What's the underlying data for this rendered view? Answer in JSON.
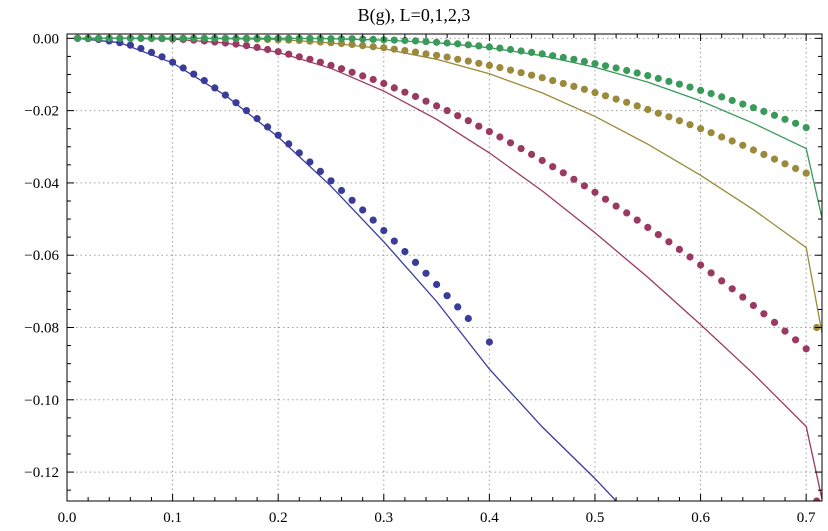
{
  "chart_data": {
    "type": "line",
    "title": "B(g), L=0,1,2,3",
    "xlabel": "",
    "ylabel": "",
    "xlim": [
      0.0,
      0.715
    ],
    "ylim": [
      -0.128,
      0.0012
    ],
    "x_ticks": [
      {
        "value": 0.0,
        "label": "0.0"
      },
      {
        "value": 0.1,
        "label": "0.1"
      },
      {
        "value": 0.2,
        "label": "0.2"
      },
      {
        "value": 0.3,
        "label": "0.3"
      },
      {
        "value": 0.4,
        "label": "0.4"
      },
      {
        "value": 0.5,
        "label": "0.5"
      },
      {
        "value": 0.6,
        "label": "0.6"
      },
      {
        "value": 0.7,
        "label": "0.7"
      }
    ],
    "y_ticks": [
      {
        "value": 0.0,
        "label": "0.00"
      },
      {
        "value": -0.02,
        "label": "−0.02"
      },
      {
        "value": -0.04,
        "label": "−0.04"
      },
      {
        "value": -0.06,
        "label": "−0.06"
      },
      {
        "value": -0.08,
        "label": "−0.08"
      },
      {
        "value": -0.1,
        "label": "−0.10"
      },
      {
        "value": -0.12,
        "label": "−0.12"
      }
    ],
    "grid": true,
    "series": [
      {
        "color": "#3a3c9a",
        "line_x": [
          0.01,
          0.05,
          0.1,
          0.15,
          0.2,
          0.25,
          0.3,
          0.35,
          0.4,
          0.45,
          0.5,
          0.52
        ],
        "line_y": [
          0.0,
          -0.0012,
          -0.0068,
          -0.0158,
          -0.0273,
          -0.0409,
          -0.0563,
          -0.0728,
          -0.0915,
          -0.1075,
          -0.1218,
          -0.128
        ],
        "points_x": [
          0.01,
          0.02,
          0.03,
          0.04,
          0.05,
          0.06,
          0.07,
          0.08,
          0.09,
          0.1,
          0.11,
          0.12,
          0.13,
          0.14,
          0.15,
          0.16,
          0.17,
          0.18,
          0.19,
          0.2,
          0.21,
          0.22,
          0.23,
          0.24,
          0.25,
          0.26,
          0.27,
          0.28,
          0.29,
          0.3,
          0.31,
          0.32,
          0.33,
          0.34,
          0.35,
          0.36,
          0.37,
          0.38,
          0.4
        ],
        "points_y": [
          0.0,
          -0.0001,
          -0.0003,
          -0.0007,
          -0.0012,
          -0.0019,
          -0.0028,
          -0.0039,
          -0.0051,
          -0.0066,
          -0.0082,
          -0.0099,
          -0.0117,
          -0.0137,
          -0.0157,
          -0.0178,
          -0.02,
          -0.0222,
          -0.0245,
          -0.0268,
          -0.0292,
          -0.0317,
          -0.0342,
          -0.0368,
          -0.0394,
          -0.0421,
          -0.0448,
          -0.0475,
          -0.0503,
          -0.0532,
          -0.0561,
          -0.059,
          -0.062,
          -0.065,
          -0.0681,
          -0.0712,
          -0.0743,
          -0.0775,
          -0.084
        ]
      },
      {
        "color": "#9a3a64",
        "line_x": [
          0.01,
          0.05,
          0.1,
          0.15,
          0.2,
          0.25,
          0.3,
          0.35,
          0.4,
          0.45,
          0.5,
          0.55,
          0.6,
          0.65,
          0.7,
          0.715
        ],
        "line_y": [
          0.0,
          0.0,
          -0.0002,
          -0.0013,
          -0.0039,
          -0.0083,
          -0.0146,
          -0.0224,
          -0.0317,
          -0.0422,
          -0.0538,
          -0.0661,
          -0.0792,
          -0.0928,
          -0.1074,
          -0.1275
        ],
        "points_x": [
          0.01,
          0.02,
          0.03,
          0.04,
          0.05,
          0.06,
          0.07,
          0.08,
          0.09,
          0.1,
          0.11,
          0.12,
          0.13,
          0.14,
          0.15,
          0.16,
          0.17,
          0.18,
          0.19,
          0.2,
          0.21,
          0.22,
          0.23,
          0.24,
          0.25,
          0.26,
          0.27,
          0.28,
          0.29,
          0.3,
          0.31,
          0.32,
          0.33,
          0.34,
          0.35,
          0.36,
          0.37,
          0.38,
          0.39,
          0.4,
          0.41,
          0.42,
          0.43,
          0.44,
          0.45,
          0.46,
          0.47,
          0.48,
          0.49,
          0.5,
          0.51,
          0.52,
          0.53,
          0.54,
          0.55,
          0.56,
          0.57,
          0.58,
          0.59,
          0.6,
          0.61,
          0.62,
          0.63,
          0.64,
          0.65,
          0.66,
          0.67,
          0.68,
          0.69,
          0.7,
          0.71
        ],
        "points_y": [
          0.0,
          0.0,
          0.0,
          0.0,
          0.0,
          0.0,
          0.0,
          0.0,
          -0.0001,
          -0.0002,
          -0.0003,
          -0.0005,
          -0.0007,
          -0.001,
          -0.0013,
          -0.0016,
          -0.002,
          -0.0025,
          -0.0031,
          -0.0037,
          -0.0044,
          -0.0051,
          -0.0058,
          -0.0066,
          -0.0075,
          -0.0084,
          -0.0094,
          -0.0104,
          -0.0114,
          -0.0125,
          -0.0137,
          -0.0149,
          -0.0161,
          -0.0174,
          -0.0187,
          -0.02,
          -0.0214,
          -0.0228,
          -0.0243,
          -0.0258,
          -0.0273,
          -0.0289,
          -0.0305,
          -0.0321,
          -0.0338,
          -0.0355,
          -0.0372,
          -0.039,
          -0.0408,
          -0.0426,
          -0.0445,
          -0.0464,
          -0.0483,
          -0.0503,
          -0.0523,
          -0.0543,
          -0.0563,
          -0.0584,
          -0.0605,
          -0.0627,
          -0.0649,
          -0.0671,
          -0.0693,
          -0.0716,
          -0.0739,
          -0.0762,
          -0.0786,
          -0.081,
          -0.0834,
          -0.0859,
          -0.128
        ]
      },
      {
        "color": "#9a8a3a",
        "line_x": [
          0.01,
          0.05,
          0.1,
          0.15,
          0.2,
          0.25,
          0.3,
          0.35,
          0.4,
          0.45,
          0.5,
          0.55,
          0.6,
          0.65,
          0.7,
          0.715
        ],
        "line_y": [
          0.0,
          0.0,
          0.0,
          -0.0001,
          -0.0003,
          -0.0013,
          -0.0029,
          -0.0058,
          -0.0098,
          -0.0151,
          -0.0216,
          -0.0293,
          -0.0379,
          -0.0474,
          -0.0579,
          -0.0815
        ],
        "points_x": [
          0.01,
          0.02,
          0.03,
          0.04,
          0.05,
          0.06,
          0.07,
          0.08,
          0.09,
          0.1,
          0.11,
          0.12,
          0.13,
          0.14,
          0.15,
          0.16,
          0.17,
          0.18,
          0.19,
          0.2,
          0.21,
          0.22,
          0.23,
          0.24,
          0.25,
          0.26,
          0.27,
          0.28,
          0.29,
          0.3,
          0.31,
          0.32,
          0.33,
          0.34,
          0.35,
          0.36,
          0.37,
          0.38,
          0.39,
          0.4,
          0.41,
          0.42,
          0.43,
          0.44,
          0.45,
          0.46,
          0.47,
          0.48,
          0.49,
          0.5,
          0.51,
          0.52,
          0.53,
          0.54,
          0.55,
          0.56,
          0.57,
          0.58,
          0.59,
          0.6,
          0.61,
          0.62,
          0.63,
          0.64,
          0.65,
          0.66,
          0.67,
          0.68,
          0.69,
          0.7,
          0.71
        ],
        "points_y": [
          0.0,
          0.0,
          0.0,
          0.0,
          0.0,
          0.0,
          0.0,
          0.0,
          0.0,
          0.0,
          0.0,
          0.0,
          0.0,
          0.0,
          -0.0001,
          -0.0001,
          -0.0002,
          -0.0002,
          -0.0003,
          -0.0004,
          -0.0005,
          -0.0006,
          -0.0008,
          -0.001,
          -0.0012,
          -0.0014,
          -0.0017,
          -0.002,
          -0.0023,
          -0.0026,
          -0.003,
          -0.0034,
          -0.0038,
          -0.0043,
          -0.0047,
          -0.0052,
          -0.0058,
          -0.0063,
          -0.0069,
          -0.0075,
          -0.0081,
          -0.0088,
          -0.0095,
          -0.0102,
          -0.0109,
          -0.0117,
          -0.0125,
          -0.0133,
          -0.0141,
          -0.015,
          -0.0159,
          -0.0168,
          -0.0177,
          -0.0187,
          -0.0197,
          -0.0207,
          -0.0217,
          -0.0228,
          -0.0239,
          -0.025,
          -0.0261,
          -0.0273,
          -0.0284,
          -0.0296,
          -0.0309,
          -0.0321,
          -0.0334,
          -0.0347,
          -0.036,
          -0.0373,
          -0.08
        ]
      },
      {
        "color": "#3a9a5a",
        "line_x": [
          0.01,
          0.05,
          0.1,
          0.15,
          0.2,
          0.25,
          0.3,
          0.35,
          0.4,
          0.45,
          0.5,
          0.55,
          0.6,
          0.65,
          0.7,
          0.715
        ],
        "line_y": [
          0.0,
          0.0,
          0.0,
          0.0,
          0.0,
          -0.0001,
          -0.0005,
          -0.0012,
          -0.0026,
          -0.0048,
          -0.008,
          -0.0121,
          -0.0173,
          -0.0235,
          -0.0305,
          -0.0497
        ],
        "points_x": [
          0.01,
          0.02,
          0.03,
          0.04,
          0.05,
          0.06,
          0.07,
          0.08,
          0.09,
          0.1,
          0.11,
          0.12,
          0.13,
          0.14,
          0.15,
          0.16,
          0.17,
          0.18,
          0.19,
          0.2,
          0.21,
          0.22,
          0.23,
          0.24,
          0.25,
          0.26,
          0.27,
          0.28,
          0.29,
          0.3,
          0.31,
          0.32,
          0.33,
          0.34,
          0.35,
          0.36,
          0.37,
          0.38,
          0.39,
          0.4,
          0.41,
          0.42,
          0.43,
          0.44,
          0.45,
          0.46,
          0.47,
          0.48,
          0.49,
          0.5,
          0.51,
          0.52,
          0.53,
          0.54,
          0.55,
          0.56,
          0.57,
          0.58,
          0.59,
          0.6,
          0.61,
          0.62,
          0.63,
          0.64,
          0.65,
          0.66,
          0.67,
          0.68,
          0.69,
          0.7
        ],
        "points_y": [
          0.0,
          0.0,
          0.0,
          0.0,
          0.0,
          0.0,
          0.0,
          0.0,
          0.0,
          0.0,
          0.0,
          0.0,
          0.0,
          0.0,
          0.0,
          0.0,
          0.0,
          0.0,
          0.0,
          0.0,
          0.0,
          0.0,
          0.0,
          0.0,
          -0.0001,
          -0.0001,
          -0.0001,
          -0.0002,
          -0.0003,
          -0.0004,
          -0.0005,
          -0.0006,
          -0.0007,
          -0.0009,
          -0.0011,
          -0.0013,
          -0.0015,
          -0.0018,
          -0.0021,
          -0.0024,
          -0.0027,
          -0.0031,
          -0.0035,
          -0.0039,
          -0.0043,
          -0.0048,
          -0.0053,
          -0.0058,
          -0.0064,
          -0.007,
          -0.0076,
          -0.0082,
          -0.0089,
          -0.0096,
          -0.0103,
          -0.0111,
          -0.0119,
          -0.0127,
          -0.0135,
          -0.0144,
          -0.0153,
          -0.0162,
          -0.0172,
          -0.0182,
          -0.0192,
          -0.0202,
          -0.0213,
          -0.0224,
          -0.0235,
          -0.0247
        ]
      }
    ]
  }
}
